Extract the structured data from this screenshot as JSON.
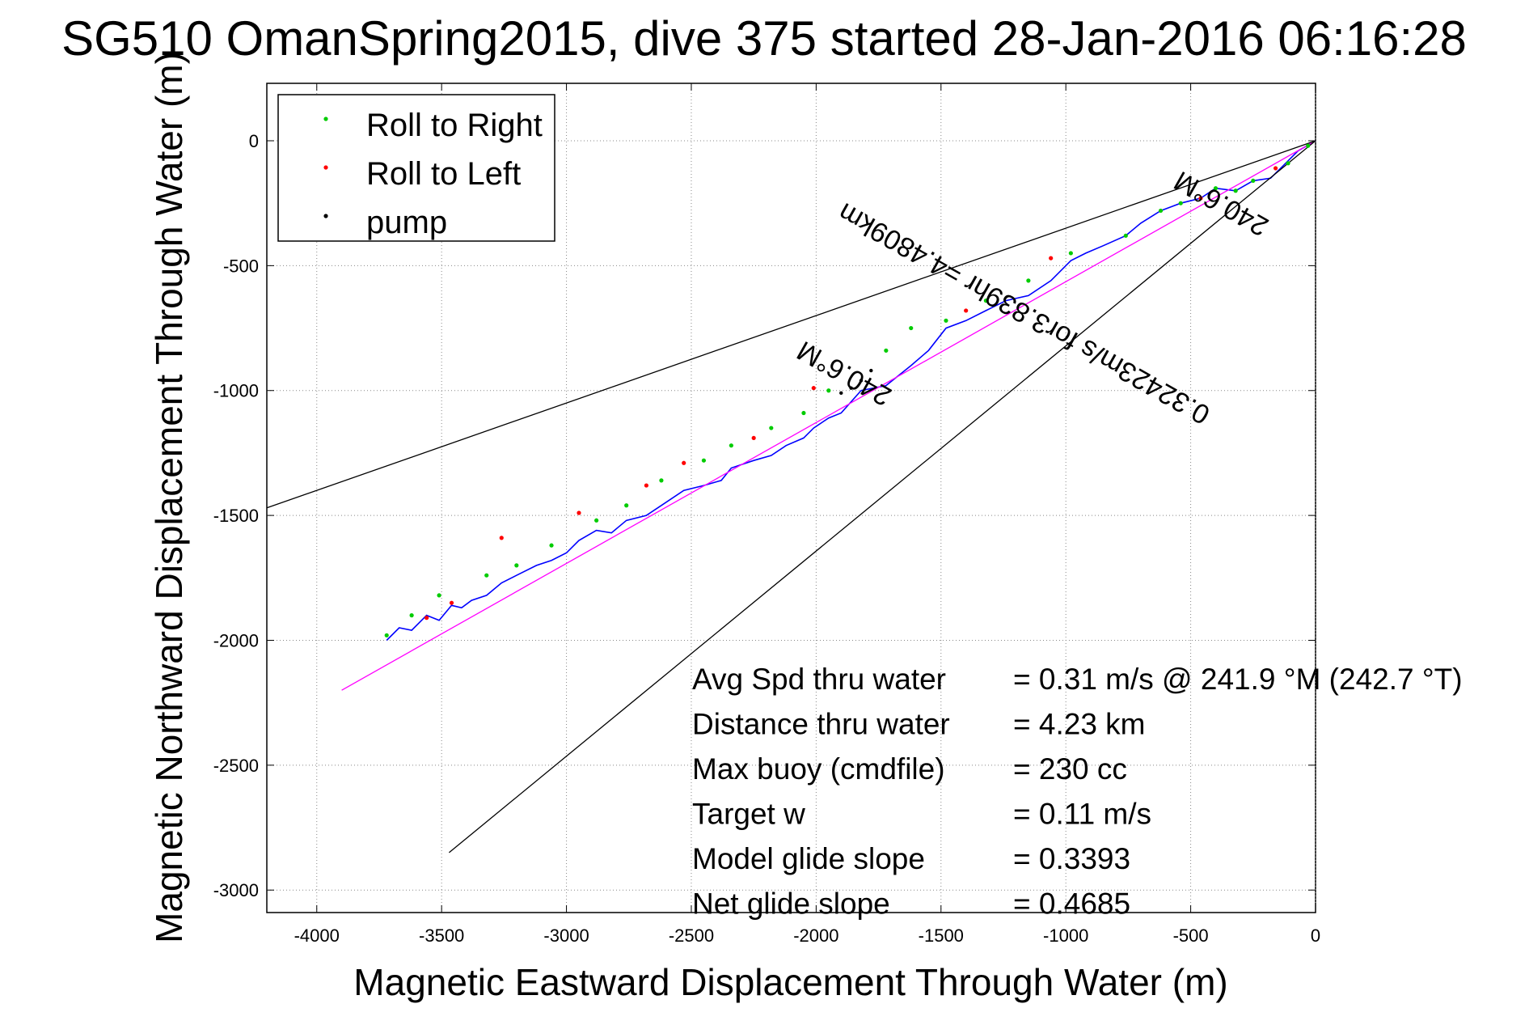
{
  "chart_data": {
    "type": "line",
    "title": "SG510 OmanSpring2015, dive 375 started 28-Jan-2016 06:16:28",
    "xlabel": "Magnetic Eastward Displacement Through Water (m)",
    "ylabel": "Magnetic Northward Displacement Through Water (m)",
    "xlim": [
      -4200,
      0
    ],
    "ylim": [
      -3090,
      230
    ],
    "xticks": [
      -4000,
      -3500,
      -3000,
      -2500,
      -2000,
      -1500,
      -1000,
      -500,
      0
    ],
    "xtick_labels": [
      "-4000",
      "-3500",
      "-3000",
      "-2500",
      "-2000",
      "-1500",
      "-1000",
      "-500",
      "0"
    ],
    "yticks": [
      0,
      -500,
      -1000,
      -1500,
      -2000,
      -2500,
      -3000
    ],
    "ytick_labels": [
      "0",
      "-500",
      "-1000",
      "-1500",
      "-2000",
      "-2500",
      "-3000"
    ],
    "grid": true,
    "legend_position": "top-left",
    "legend": [
      {
        "label": "Roll to Right",
        "color": "#00cc00"
      },
      {
        "label": "Roll to Left",
        "color": "#ff0000"
      },
      {
        "label": "pump",
        "color": "#000000"
      }
    ],
    "series": [
      {
        "color": "#0000ff",
        "x": [
          0,
          -70,
          -130,
          -180,
          -250,
          -320,
          -400,
          -460,
          -540,
          -620,
          -700,
          -760,
          -850,
          -920,
          -980,
          -1060,
          -1150,
          -1240,
          -1320,
          -1400,
          -1480,
          -1550,
          -1620,
          -1720,
          -1820,
          -1900,
          -1950,
          -2010,
          -2050,
          -2120,
          -2180,
          -2250,
          -2340,
          -2380,
          -2450,
          -2530,
          -2620,
          -2680,
          -2760,
          -2820,
          -2880,
          -2950,
          -3000,
          -3060,
          -3120,
          -3200,
          -3260,
          -3320,
          -3380,
          -3420,
          -3460,
          -3510,
          -3560,
          -3620,
          -3670,
          -3720
        ],
        "y": [
          0,
          -40,
          -100,
          -150,
          -160,
          -200,
          -190,
          -230,
          -250,
          -280,
          -330,
          -380,
          -420,
          -450,
          -480,
          -560,
          -620,
          -640,
          -680,
          -720,
          -750,
          -840,
          -900,
          -980,
          -1000,
          -1090,
          -1110,
          -1150,
          -1190,
          -1220,
          -1260,
          -1280,
          -1310,
          -1360,
          -1380,
          -1400,
          -1460,
          -1500,
          -1520,
          -1570,
          -1560,
          -1600,
          -1650,
          -1680,
          -1700,
          -1740,
          -1770,
          -1820,
          -1840,
          -1870,
          -1860,
          -1920,
          -1900,
          -1960,
          -1950,
          -2000
        ]
      },
      {
        "color": "#ff00ff",
        "x": [
          0,
          -3900
        ],
        "y": [
          0,
          -2200
        ]
      },
      {
        "color": "#000000",
        "x": [
          0,
          -4200
        ],
        "y": [
          0,
          -1470
        ]
      },
      {
        "color": "#000000",
        "x": [
          0,
          -3470
        ],
        "y": [
          0,
          -2850
        ]
      }
    ],
    "markers": [
      {
        "type": "Roll to Right",
        "color": "#00cc00",
        "x": [
          -30,
          -110,
          -250,
          -320,
          -400,
          -540,
          -620,
          -760,
          -980,
          -1150,
          -1320,
          -1480,
          -1620,
          -1720,
          -1950,
          -2050,
          -2180,
          -2340,
          -2450,
          -2620,
          -2760,
          -2880,
          -3060,
          -3200,
          -3320,
          -3510,
          -3620,
          -3720
        ],
        "y": [
          -20,
          -90,
          -160,
          -200,
          -190,
          -250,
          -280,
          -380,
          -450,
          -560,
          -640,
          -720,
          -750,
          -840,
          -1000,
          -1090,
          -1150,
          -1220,
          -1280,
          -1360,
          -1460,
          -1520,
          -1620,
          -1700,
          -1740,
          -1820,
          -1900,
          -1980
        ]
      },
      {
        "type": "Roll to Left",
        "color": "#ff0000",
        "x": [
          -160,
          -460,
          -1060,
          -1400,
          -2010,
          -2250,
          -2530,
          -2680,
          -2950,
          -3260,
          -3460,
          -3560
        ],
        "y": [
          -110,
          -230,
          -470,
          -680,
          -990,
          -1190,
          -1290,
          -1380,
          -1490,
          -1590,
          -1850,
          -1910
        ]
      },
      {
        "type": "pump",
        "color": "#000000",
        "x": [
          -1780,
          -1820,
          -1860,
          -1900
        ],
        "y": [
          -920,
          -960,
          -990,
          -1010
        ]
      }
    ],
    "annotations": [
      {
        "text": "240.6°M",
        "x": -1870,
        "y": -900,
        "rotation": -150.6
      },
      {
        "text": "240.6°M",
        "x": -360,
        "y": -220,
        "rotation": -150.6
      },
      {
        "text": "0.32423m/s for3.839hr =4.4809km",
        "x": -1150,
        "y": -660,
        "rotation": -150.6
      }
    ],
    "info": [
      {
        "label": "Avg Spd thru water",
        "value": "=  0.31 m/s @ 241.9 °M (242.7 °T)"
      },
      {
        "label": "Distance thru water",
        "value": "=  4.23 km"
      },
      {
        "label": "Max buoy (cmdfile)",
        "value": "= 230 cc"
      },
      {
        "label": "Target w",
        "value": "= 0.11 m/s"
      },
      {
        "label": "Model glide slope",
        "value": "= 0.3393"
      },
      {
        "label": "Net glide slope",
        "value": "= 0.4685"
      }
    ]
  }
}
